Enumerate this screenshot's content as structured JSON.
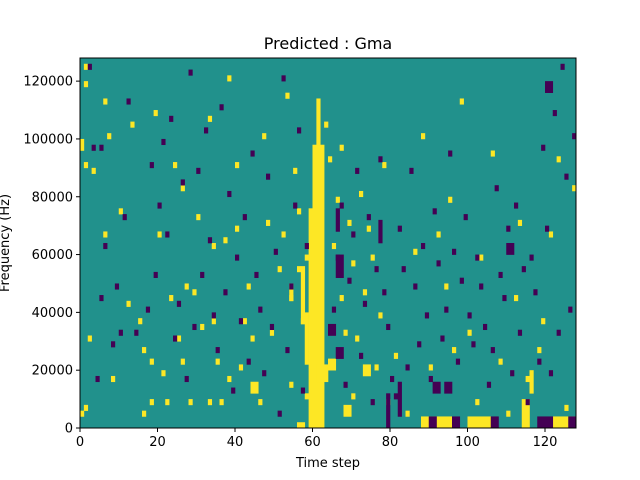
{
  "chart_data": {
    "type": "heatmap",
    "title": "Predicted : Gma",
    "xlabel": "Time step",
    "ylabel": "Frequency (Hz)",
    "xlim": [
      0,
      128
    ],
    "ylim": [
      0,
      128000
    ],
    "x_ticks": [
      0,
      20,
      40,
      60,
      80,
      100,
      120
    ],
    "y_ticks": [
      0,
      20000,
      40000,
      60000,
      80000,
      100000,
      120000
    ],
    "x_tick_labels": [
      "0",
      "20",
      "40",
      "60",
      "80",
      "100",
      "120"
    ],
    "y_tick_labels": [
      "0",
      "20000",
      "40000",
      "60000",
      "80000",
      "100000",
      "120000"
    ],
    "n_time_steps": 128,
    "n_freq_bins": 64,
    "colors": {
      "background": "#21918c",
      "low": "#440154",
      "high": "#fde725"
    },
    "high_cells": [
      [
        0,
        2
      ],
      [
        1,
        3
      ],
      [
        1,
        45
      ],
      [
        1,
        59
      ],
      [
        1,
        62
      ],
      [
        2,
        15
      ],
      [
        3,
        44
      ],
      [
        6,
        33
      ],
      [
        6,
        56
      ],
      [
        7,
        50
      ],
      [
        8,
        8
      ],
      [
        10,
        37
      ],
      [
        12,
        21
      ],
      [
        13,
        52
      ],
      [
        15,
        18
      ],
      [
        16,
        13
      ],
      [
        16,
        2
      ],
      [
        18,
        11
      ],
      [
        18,
        4
      ],
      [
        19,
        54
      ],
      [
        20,
        33
      ],
      [
        21,
        9
      ],
      [
        22,
        4
      ],
      [
        23,
        22
      ],
      [
        24,
        45
      ],
      [
        25,
        15
      ],
      [
        26,
        11
      ],
      [
        26,
        41
      ],
      [
        27,
        24
      ],
      [
        28,
        4
      ],
      [
        29,
        23
      ],
      [
        30,
        36
      ],
      [
        31,
        17
      ],
      [
        33,
        4
      ],
      [
        33,
        53
      ],
      [
        34,
        31
      ],
      [
        34,
        18
      ],
      [
        35,
        11
      ],
      [
        36,
        4
      ],
      [
        37,
        32
      ],
      [
        38,
        8
      ],
      [
        38,
        60
      ],
      [
        40,
        34
      ],
      [
        40,
        45
      ],
      [
        41,
        10
      ],
      [
        42,
        18
      ],
      [
        43,
        24
      ],
      [
        44,
        15
      ],
      [
        46,
        4
      ],
      [
        47,
        50
      ],
      [
        48,
        35
      ],
      [
        49,
        16
      ],
      [
        51,
        27
      ],
      [
        52,
        33
      ],
      [
        53,
        57
      ],
      [
        54,
        22
      ],
      [
        54,
        7
      ],
      [
        55,
        44
      ],
      [
        56,
        27
      ],
      [
        56,
        37
      ],
      [
        57,
        18
      ],
      [
        58,
        5
      ],
      [
        58,
        29
      ],
      [
        60,
        28
      ],
      [
        60,
        14
      ],
      [
        61,
        30
      ],
      [
        62,
        10
      ],
      [
        63,
        52
      ],
      [
        64,
        46
      ],
      [
        65,
        31
      ],
      [
        66,
        39
      ],
      [
        67,
        22
      ],
      [
        67,
        48
      ],
      [
        68,
        16
      ],
      [
        69,
        35
      ],
      [
        70,
        5
      ],
      [
        70,
        28
      ],
      [
        71,
        15
      ],
      [
        72,
        40
      ],
      [
        73,
        23
      ],
      [
        74,
        34
      ],
      [
        75,
        29
      ],
      [
        76,
        10
      ],
      [
        77,
        19
      ],
      [
        78,
        45
      ],
      [
        79,
        4
      ],
      [
        81,
        12
      ],
      [
        84,
        2
      ],
      [
        86,
        30
      ],
      [
        88,
        50
      ],
      [
        90,
        10
      ],
      [
        92,
        33
      ],
      [
        94,
        24
      ],
      [
        95,
        39
      ],
      [
        96,
        13
      ],
      [
        98,
        56
      ],
      [
        100,
        16
      ],
      [
        102,
        4
      ],
      [
        103,
        29
      ],
      [
        106,
        47
      ],
      [
        108,
        11
      ],
      [
        110,
        2
      ],
      [
        112,
        22
      ],
      [
        113,
        35
      ],
      [
        115,
        8
      ],
      [
        118,
        13
      ],
      [
        119,
        18
      ],
      [
        120,
        58
      ],
      [
        121,
        33
      ],
      [
        123,
        46
      ],
      [
        125,
        3
      ],
      [
        127,
        41
      ]
    ],
    "high_spans": [
      [
        59,
        0,
        63,
        38
      ],
      [
        60,
        38,
        63,
        49
      ],
      [
        61,
        49,
        62,
        57
      ],
      [
        58,
        11,
        59,
        20
      ],
      [
        57,
        18,
        58,
        28
      ],
      [
        54,
        22,
        55,
        25
      ],
      [
        61,
        8,
        64,
        11
      ],
      [
        88,
        0,
        96,
        2
      ],
      [
        100,
        0,
        106,
        2
      ],
      [
        114,
        0,
        116,
        5
      ],
      [
        122,
        0,
        128,
        2
      ],
      [
        116,
        6,
        117,
        10
      ],
      [
        44,
        6,
        46,
        8
      ],
      [
        64,
        10,
        66,
        12
      ],
      [
        68,
        2,
        70,
        4
      ],
      [
        73,
        9,
        75,
        11
      ],
      [
        56,
        0,
        58,
        1
      ],
      [
        0,
        48,
        1,
        50
      ]
    ],
    "low_cells": [
      [
        2,
        62
      ],
      [
        3,
        48
      ],
      [
        4,
        8
      ],
      [
        5,
        22
      ],
      [
        5,
        48
      ],
      [
        6,
        31
      ],
      [
        8,
        14
      ],
      [
        9,
        24
      ],
      [
        10,
        16
      ],
      [
        11,
        36
      ],
      [
        12,
        56
      ],
      [
        14,
        16
      ],
      [
        17,
        20
      ],
      [
        18,
        45
      ],
      [
        19,
        26
      ],
      [
        20,
        38
      ],
      [
        21,
        49
      ],
      [
        22,
        33
      ],
      [
        23,
        53
      ],
      [
        24,
        15
      ],
      [
        25,
        21
      ],
      [
        26,
        42
      ],
      [
        27,
        8
      ],
      [
        28,
        61
      ],
      [
        29,
        17
      ],
      [
        30,
        44
      ],
      [
        31,
        26
      ],
      [
        32,
        51
      ],
      [
        33,
        32
      ],
      [
        34,
        19
      ],
      [
        35,
        13
      ],
      [
        36,
        55
      ],
      [
        37,
        23
      ],
      [
        38,
        40
      ],
      [
        39,
        6
      ],
      [
        40,
        29
      ],
      [
        41,
        18
      ],
      [
        42,
        36
      ],
      [
        43,
        11
      ],
      [
        44,
        47
      ],
      [
        45,
        26
      ],
      [
        46,
        20
      ],
      [
        47,
        9
      ],
      [
        48,
        43
      ],
      [
        49,
        17
      ],
      [
        50,
        30
      ],
      [
        51,
        2
      ],
      [
        52,
        60
      ],
      [
        53,
        13
      ],
      [
        54,
        24
      ],
      [
        55,
        38
      ],
      [
        56,
        51
      ],
      [
        57,
        6
      ],
      [
        58,
        31
      ],
      [
        65,
        20
      ],
      [
        66,
        29
      ],
      [
        67,
        38
      ],
      [
        68,
        7
      ],
      [
        69,
        25
      ],
      [
        70,
        33
      ],
      [
        71,
        44
      ],
      [
        72,
        12
      ],
      [
        73,
        21
      ],
      [
        74,
        36
      ],
      [
        75,
        4
      ],
      [
        76,
        27
      ],
      [
        77,
        46
      ],
      [
        78,
        23
      ],
      [
        79,
        17
      ],
      [
        80,
        8
      ],
      [
        81,
        5
      ],
      [
        82,
        34
      ],
      [
        83,
        27
      ],
      [
        84,
        10
      ],
      [
        85,
        44
      ],
      [
        86,
        24
      ],
      [
        87,
        14
      ],
      [
        88,
        31
      ],
      [
        89,
        19
      ],
      [
        90,
        8
      ],
      [
        91,
        37
      ],
      [
        92,
        28
      ],
      [
        93,
        15
      ],
      [
        94,
        20
      ],
      [
        95,
        47
      ],
      [
        96,
        30
      ],
      [
        97,
        11
      ],
      [
        98,
        25
      ],
      [
        99,
        36
      ],
      [
        100,
        19
      ],
      [
        101,
        14
      ],
      [
        102,
        29
      ],
      [
        103,
        24
      ],
      [
        104,
        17
      ],
      [
        105,
        7
      ],
      [
        106,
        13
      ],
      [
        107,
        41
      ],
      [
        108,
        26
      ],
      [
        109,
        22
      ],
      [
        110,
        34
      ],
      [
        111,
        9
      ],
      [
        112,
        38
      ],
      [
        113,
        16
      ],
      [
        114,
        27
      ],
      [
        115,
        4
      ],
      [
        116,
        29
      ],
      [
        117,
        23
      ],
      [
        118,
        11
      ],
      [
        119,
        48
      ],
      [
        120,
        34
      ],
      [
        121,
        9
      ],
      [
        122,
        54
      ],
      [
        123,
        16
      ],
      [
        124,
        62
      ],
      [
        125,
        43
      ],
      [
        126,
        20
      ],
      [
        127,
        50
      ]
    ],
    "low_spans": [
      [
        90,
        0,
        92,
        2
      ],
      [
        96,
        0,
        98,
        2
      ],
      [
        106,
        0,
        108,
        2
      ],
      [
        118,
        0,
        122,
        2
      ],
      [
        126,
        0,
        128,
        2
      ],
      [
        91,
        6,
        93,
        8
      ],
      [
        94,
        6,
        96,
        8
      ],
      [
        66,
        12,
        68,
        14
      ],
      [
        64,
        16,
        66,
        18
      ],
      [
        66,
        26,
        68,
        30
      ],
      [
        66,
        34,
        67,
        38
      ],
      [
        79,
        0,
        80,
        6
      ],
      [
        82,
        2,
        83,
        8
      ],
      [
        77,
        32,
        78,
        36
      ],
      [
        110,
        30,
        112,
        32
      ],
      [
        120,
        58,
        122,
        60
      ]
    ]
  }
}
